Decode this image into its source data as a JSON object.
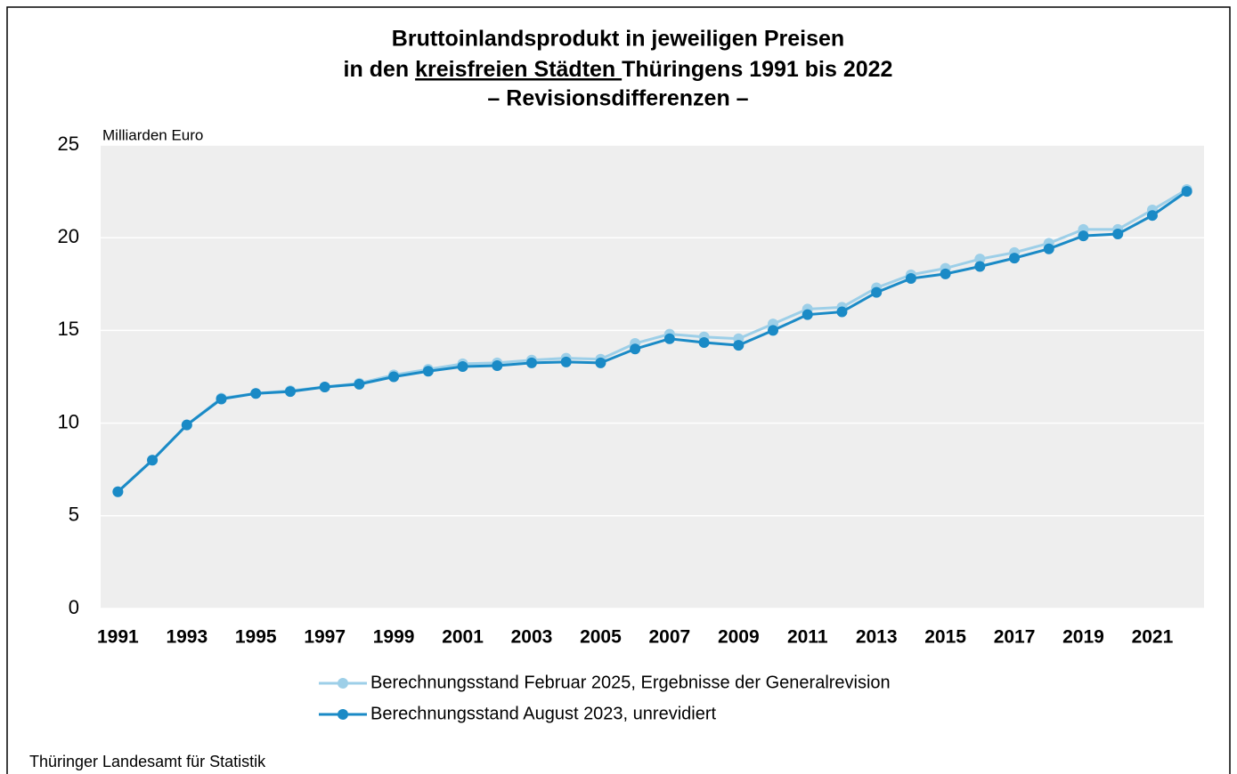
{
  "chart_data": {
    "type": "line",
    "title": {
      "line1": "Bruttoinlandsprodukt in jeweiligen Preisen",
      "line2": {
        "before": "in den ",
        "underlined": "kreisfreien Städten ",
        "after": "Thüringens 1991 bis 2022"
      },
      "line3": "– Revisionsdifferenzen –"
    },
    "y_axis_label": "Milliarden Euro",
    "source": "Thüringer Landesamt für Statistik",
    "categories": [
      "1991",
      null,
      "1993",
      null,
      "1995",
      null,
      "1997",
      null,
      "1999",
      null,
      "2001",
      null,
      "2003",
      null,
      "2005",
      null,
      "2007",
      null,
      "2009",
      null,
      "2011",
      null,
      "2013",
      null,
      "2015",
      null,
      "2017",
      null,
      "2019",
      null,
      "2021",
      null
    ],
    "series": [
      {
        "name": "Berechnungsstand Februar 2025, Ergebnisse der Generalrevision",
        "color": "#9dcfe8",
        "values": [
          6.3,
          8.0,
          9.9,
          11.35,
          11.6,
          11.75,
          11.95,
          12.15,
          12.6,
          12.9,
          13.2,
          13.25,
          13.4,
          13.5,
          13.45,
          14.3,
          14.8,
          14.65,
          14.55,
          15.35,
          16.15,
          16.25,
          17.3,
          18.0,
          18.35,
          18.85,
          19.2,
          19.7,
          20.45,
          20.45,
          21.5,
          22.6
        ]
      },
      {
        "name": "Berechnungsstand August 2023, unrevidiert",
        "color": "#1a8ac6",
        "values": [
          6.3,
          8.0,
          9.9,
          11.3,
          11.6,
          11.7,
          11.95,
          12.1,
          12.5,
          12.8,
          13.05,
          13.1,
          13.25,
          13.3,
          13.25,
          14.0,
          14.55,
          14.35,
          14.2,
          15.0,
          15.85,
          16.0,
          17.05,
          17.8,
          18.05,
          18.45,
          18.9,
          19.4,
          20.1,
          20.2,
          21.2,
          22.5
        ]
      }
    ],
    "ylim": [
      0,
      25
    ],
    "yticks": [
      0,
      5,
      10,
      15,
      20,
      25
    ],
    "grid": true,
    "plot_background": "#eeeeee"
  }
}
